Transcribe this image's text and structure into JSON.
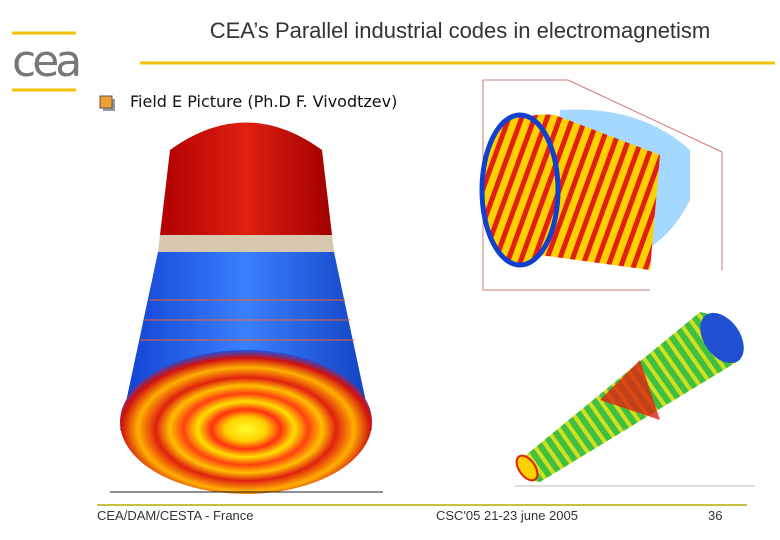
{
  "logo": {
    "text": "cea"
  },
  "header": {
    "title": "CEA’s Parallel industrial codes in electromagnetism"
  },
  "bullets": [
    "Field E Picture (Ph.D F. Vivodtzev)"
  ],
  "footer": {
    "left": "CEA/DAM/CESTA - France",
    "center": "CSC'05 21-23 june 2005",
    "page": "36"
  }
}
